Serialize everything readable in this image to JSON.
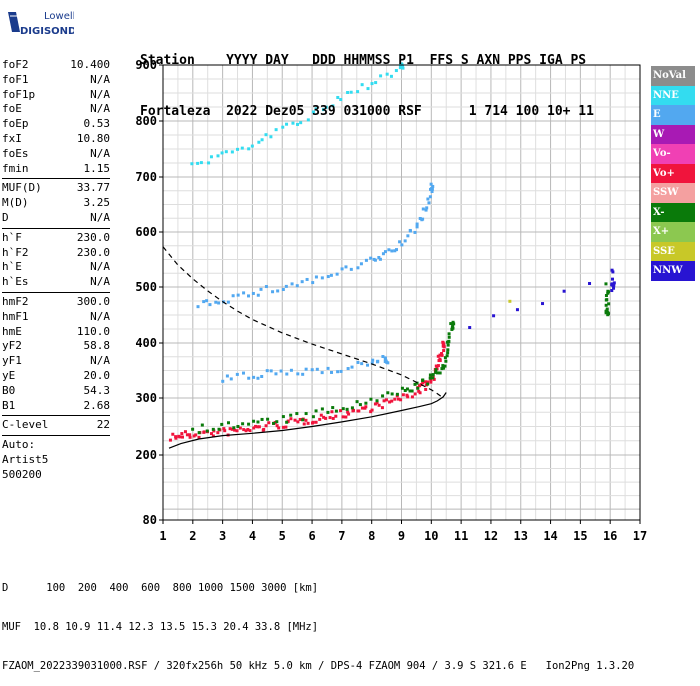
{
  "logo": {
    "line1": "Lowell",
    "line2": "DIGISONDE"
  },
  "header": {
    "line1": "Station    YYYY DAY   DDD HHMMSS P1  FFS S AXN PPS IGA PS",
    "line2": "Fortaleza  2022 Dez05 339 031000 RSF      1 714 100 10+ 11"
  },
  "params": [
    {
      "group": [
        {
          "name": "foF2",
          "value": "10.400"
        },
        {
          "name": "foF1",
          "value": "N/A"
        },
        {
          "name": "foF1p",
          "value": "N/A"
        },
        {
          "name": "foE",
          "value": "N/A"
        },
        {
          "name": "foEp",
          "value": "0.53"
        },
        {
          "name": "fxI",
          "value": "10.80"
        },
        {
          "name": "foEs",
          "value": "N/A"
        },
        {
          "name": "fmin",
          "value": "1.15"
        }
      ]
    },
    {
      "group": [
        {
          "name": "MUF(D)",
          "value": "33.77"
        },
        {
          "name": "M(D)",
          "value": "3.25"
        },
        {
          "name": "D",
          "value": "N/A"
        }
      ]
    },
    {
      "group": [
        {
          "name": "h`F",
          "value": "230.0"
        },
        {
          "name": "h`F2",
          "value": "230.0"
        },
        {
          "name": "h`E",
          "value": "N/A"
        },
        {
          "name": "h`Es",
          "value": "N/A"
        }
      ]
    },
    {
      "group": [
        {
          "name": "hmF2",
          "value": "300.0"
        },
        {
          "name": "hmF1",
          "value": "N/A"
        },
        {
          "name": "hmE",
          "value": "110.0"
        },
        {
          "name": "yF2",
          "value": "58.8"
        },
        {
          "name": "yF1",
          "value": "N/A"
        },
        {
          "name": "yE",
          "value": "20.0"
        },
        {
          "name": "B0",
          "value": "54.3"
        },
        {
          "name": "B1",
          "value": "2.68"
        }
      ]
    },
    {
      "group": [
        {
          "name": "C-level",
          "value": "22"
        }
      ]
    }
  ],
  "auto": {
    "line1": "Auto:",
    "line2": "Artist5",
    "line3": "500200"
  },
  "legend": [
    {
      "label": "NoVal",
      "color": "#8c8c8c"
    },
    {
      "label": "NNE",
      "color": "#33dcf0"
    },
    {
      "label": "E",
      "color": "#52a8f0"
    },
    {
      "label": "W",
      "color": "#a81ab4"
    },
    {
      "label": "Vo-",
      "color": "#f040b4"
    },
    {
      "label": "Vo+",
      "color": "#f0143c"
    },
    {
      "label": "SSW",
      "color": "#f4a0a0"
    },
    {
      "label": "X-",
      "color": "#0a7a0a"
    },
    {
      "label": "X+",
      "color": "#8cc850"
    },
    {
      "label": "SSE",
      "color": "#c8c828"
    },
    {
      "label": "NNW",
      "color": "#2814d2"
    }
  ],
  "footer": {
    "line1": "D      100  200  400  600  800 1000 1500 3000 [km]",
    "line2": "MUF  10.8 10.9 11.4 12.3 13.5 15.3 20.4 33.8 [MHz]",
    "line3": "FZAOM_2022339031000.RSF / 320fx256h 50 kHz 5.0 km / DPS-4 FZAOM 904 / 3.9 S 321.6 E   Ion2Png 1.3.20"
  },
  "chart_data": {
    "type": "scatter",
    "xlim": [
      1,
      17
    ],
    "ylim": [
      80,
      900
    ],
    "x_ticks": [
      1,
      2,
      3,
      4,
      5,
      6,
      7,
      8,
      9,
      10,
      11,
      12,
      13,
      14,
      15,
      16,
      17
    ],
    "y_ticks": [
      80,
      200,
      300,
      400,
      500,
      600,
      700,
      800,
      900
    ],
    "grid": true,
    "legend_placement": "right",
    "series": [
      {
        "name": "F2 trace O (Vo+)",
        "color": "#f0143c",
        "points": [
          [
            1.3,
            232
          ],
          [
            1.6,
            234
          ],
          [
            2.0,
            236
          ],
          [
            2.5,
            238
          ],
          [
            3.0,
            240
          ],
          [
            3.5,
            243
          ],
          [
            4.0,
            246
          ],
          [
            4.5,
            250
          ],
          [
            5.0,
            254
          ],
          [
            5.5,
            258
          ],
          [
            6.0,
            262
          ],
          [
            6.5,
            268
          ],
          [
            7.0,
            272
          ],
          [
            7.5,
            278
          ],
          [
            8.0,
            284
          ],
          [
            8.5,
            292
          ],
          [
            9.0,
            300
          ],
          [
            9.5,
            312
          ],
          [
            9.8,
            322
          ],
          [
            10.0,
            335
          ],
          [
            10.2,
            352
          ],
          [
            10.3,
            372
          ],
          [
            10.4,
            400
          ]
        ]
      },
      {
        "name": "F2 trace X (X-)",
        "color": "#0a7a0a",
        "points": [
          [
            2.0,
            245
          ],
          [
            3.0,
            250
          ],
          [
            4.0,
            256
          ],
          [
            5.0,
            262
          ],
          [
            6.0,
            270
          ],
          [
            7.0,
            282
          ],
          [
            8.0,
            294
          ],
          [
            9.0,
            312
          ],
          [
            9.5,
            322
          ],
          [
            10.0,
            335
          ],
          [
            10.3,
            350
          ],
          [
            10.5,
            372
          ],
          [
            10.6,
            400
          ],
          [
            10.7,
            430
          ]
        ]
      },
      {
        "name": "2F2 echo (E)",
        "color": "#52a8f0",
        "points": [
          [
            2.2,
            470
          ],
          [
            3.0,
            478
          ],
          [
            4.0,
            488
          ],
          [
            5.0,
            500
          ],
          [
            6.0,
            512
          ],
          [
            7.0,
            528
          ],
          [
            8.0,
            546
          ],
          [
            8.5,
            560
          ],
          [
            9.0,
            580
          ],
          [
            9.5,
            610
          ],
          [
            9.8,
            640
          ],
          [
            10.0,
            680
          ]
        ]
      },
      {
        "name": "3F2 echo (NNE)",
        "color": "#33dcf0",
        "points": [
          [
            2.0,
            720
          ],
          [
            3.0,
            740
          ],
          [
            4.0,
            760
          ],
          [
            5.0,
            785
          ],
          [
            6.0,
            810
          ],
          [
            7.0,
            840
          ],
          [
            8.0,
            870
          ],
          [
            9.0,
            895
          ]
        ]
      },
      {
        "name": "Oblique spread (E)",
        "color": "#52a8f0",
        "points": [
          [
            3.0,
            335
          ],
          [
            4.0,
            340
          ],
          [
            5.0,
            345
          ],
          [
            6.0,
            350
          ],
          [
            7.0,
            355
          ],
          [
            8.0,
            365
          ],
          [
            8.5,
            370
          ]
        ]
      },
      {
        "name": "Isolated (NNW)",
        "color": "#2814d2",
        "points": [
          [
            11.3,
            425
          ],
          [
            16.1,
            525
          ],
          [
            16.1,
            500
          ]
        ]
      },
      {
        "name": "Isolated (X-)",
        "color": "#0a7a0a",
        "points": [
          [
            15.9,
            500
          ],
          [
            15.9,
            470
          ],
          [
            15.9,
            455
          ]
        ]
      },
      {
        "name": "Isolated (SSE)",
        "color": "#c8c828",
        "points": [
          [
            12.6,
            475
          ]
        ]
      }
    ],
    "curves": [
      {
        "name": "MUF profile (solid)",
        "style": "solid",
        "points": [
          [
            1.2,
            212
          ],
          [
            1.6,
            220
          ],
          [
            2.2,
            228
          ],
          [
            3.0,
            234
          ],
          [
            4.0,
            238
          ],
          [
            5.0,
            243
          ],
          [
            6.0,
            250
          ],
          [
            7.0,
            258
          ],
          [
            8.0,
            267
          ],
          [
            9.0,
            278
          ],
          [
            9.6,
            285
          ],
          [
            10.0,
            290
          ],
          [
            10.2,
            295
          ],
          [
            10.4,
            302
          ],
          [
            10.5,
            310
          ]
        ]
      },
      {
        "name": "Model profile (dashed)",
        "style": "dashed",
        "points": [
          [
            1.0,
            573
          ],
          [
            1.5,
            540
          ],
          [
            2.0,
            515
          ],
          [
            2.5,
            493
          ],
          [
            3.0,
            474
          ],
          [
            3.5,
            457
          ],
          [
            4.0,
            442
          ],
          [
            5.0,
            418
          ],
          [
            6.0,
            398
          ],
          [
            7.0,
            380
          ],
          [
            8.0,
            362
          ],
          [
            9.0,
            342
          ],
          [
            9.6,
            326
          ],
          [
            10.0,
            315
          ],
          [
            10.2,
            308
          ],
          [
            10.4,
            300
          ]
        ]
      }
    ]
  }
}
